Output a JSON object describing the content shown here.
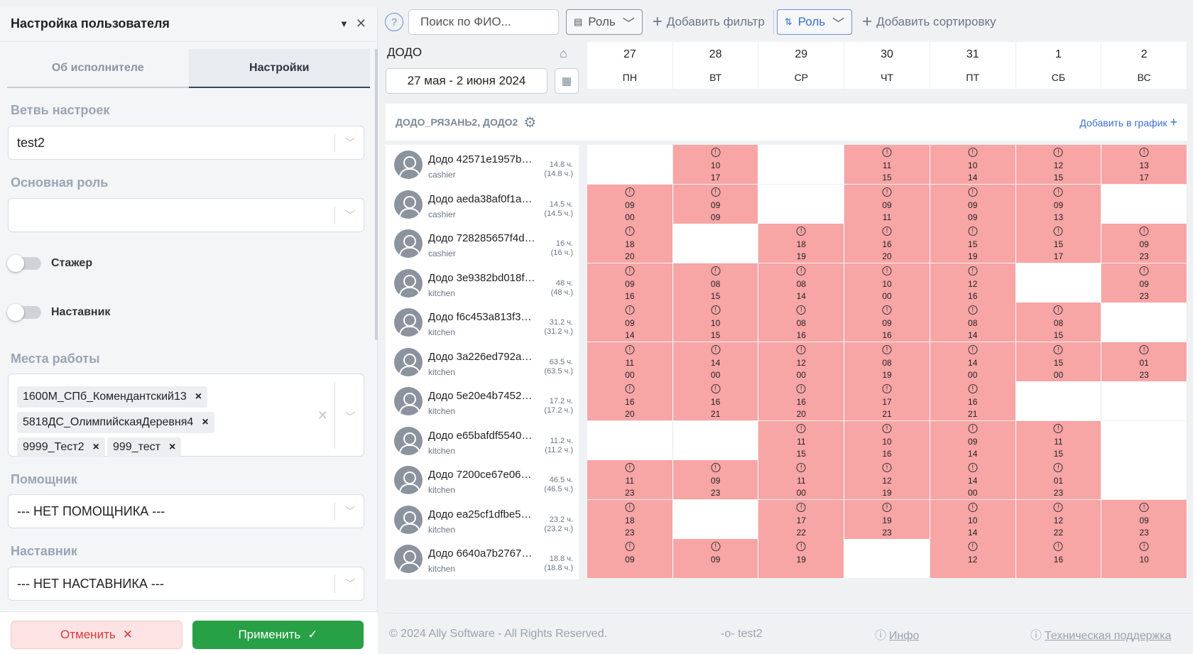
{
  "panel": {
    "title": "Настройка пользователя",
    "tabs": [
      "Об исполнителе",
      "Настройки"
    ],
    "branch_label": "Ветвь настроек",
    "branch_value": "test2",
    "role_label": "Основная роль",
    "role_value": "",
    "trainee_label": "Стажер",
    "mentor_toggle_label": "Наставник",
    "workplaces_label": "Места работы",
    "workplaces": [
      "1600М_СПб_Комендантский13",
      "5818ДС_ОлимпийскаяДеревня4",
      "9999_Тест2",
      "999_тест"
    ],
    "assistant_label": "Помощник",
    "assistant_value": "--- НЕТ ПОМОЩНИКА ---",
    "mentor_label": "Наставник",
    "mentor_value": "--- НЕТ НАСТАВНИКА ---",
    "cancel_label": "Отменить",
    "apply_label": "Применить"
  },
  "toolbar": {
    "help": "?",
    "search_placeholder": "Поиск по ФИО...",
    "role_filter": "Роль",
    "add_filter": "Добавить фильтр",
    "role_sort": "Роль",
    "add_sort": "Добавить сортировку"
  },
  "schedule": {
    "org": "ДОДО",
    "date_range": "27 мая - 2 июня 2024",
    "days": [
      {
        "num": "27",
        "wd": "ПН"
      },
      {
        "num": "28",
        "wd": "ВТ"
      },
      {
        "num": "29",
        "wd": "СР"
      },
      {
        "num": "30",
        "wd": "ЧТ"
      },
      {
        "num": "31",
        "wd": "ПТ"
      },
      {
        "num": "1",
        "wd": "СБ"
      },
      {
        "num": "2",
        "wd": "ВС"
      }
    ],
    "group_title": "ДОДО_РЯЗАНЬ2, ДОДО2",
    "add_to_graph": "Добавить в график",
    "employees": [
      {
        "name": "Додо 42571e1957b…",
        "role": "cashier",
        "hours": "14.8 ч.",
        "hours_total": "(14.8 ч.)",
        "shifts": [
          null,
          [
            "10",
            "17"
          ],
          null,
          [
            "11",
            "15"
          ],
          [
            "10",
            "14"
          ],
          [
            "12",
            "15"
          ],
          [
            "13",
            "17"
          ]
        ]
      },
      {
        "name": "Додо aeda38af0f1a…",
        "role": "cashier",
        "hours": "14.5 ч.",
        "hours_total": "(14.5 ч.)",
        "shifts": [
          [
            "09",
            "00"
          ],
          [
            "09",
            "09"
          ],
          null,
          [
            "09",
            "11"
          ],
          [
            "09",
            "09"
          ],
          [
            "09",
            "13"
          ],
          null
        ]
      },
      {
        "name": "Додо 728285657f4d…",
        "role": "cashier",
        "hours": "16 ч.",
        "hours_total": "(16 ч.)",
        "shifts": [
          [
            "18",
            "20"
          ],
          null,
          [
            "18",
            "19"
          ],
          [
            "16",
            "20"
          ],
          [
            "15",
            "19"
          ],
          [
            "15",
            "17"
          ],
          [
            "09",
            "23"
          ]
        ]
      },
      {
        "name": "Додо 3e9382bd018f…",
        "role": "kitchen",
        "hours": "48 ч.",
        "hours_total": "(48 ч.)",
        "shifts": [
          [
            "09",
            "16"
          ],
          [
            "08",
            "15"
          ],
          [
            "08",
            "14"
          ],
          [
            "10",
            "00"
          ],
          [
            "12",
            "16"
          ],
          null,
          [
            "09",
            "23"
          ]
        ]
      },
      {
        "name": "Додо f6c453a813f3…",
        "role": "kitchen",
        "hours": "31.2 ч.",
        "hours_total": "(31.2 ч.)",
        "shifts": [
          [
            "09",
            "14"
          ],
          [
            "10",
            "15"
          ],
          [
            "08",
            "16"
          ],
          [
            "09",
            "16"
          ],
          [
            "08",
            "14"
          ],
          [
            "08",
            "15"
          ],
          null
        ]
      },
      {
        "name": "Додо 3a226ed792a…",
        "role": "kitchen",
        "hours": "63.5 ч.",
        "hours_total": "(63.5 ч.)",
        "shifts": [
          [
            "11",
            "00"
          ],
          [
            "14",
            "00"
          ],
          [
            "12",
            "00"
          ],
          [
            "08",
            "19"
          ],
          [
            "14",
            "00"
          ],
          [
            "15",
            "00"
          ],
          [
            "01",
            "23"
          ]
        ]
      },
      {
        "name": "Додо 5e20e4b7452…",
        "role": "kitchen",
        "hours": "17.2 ч.",
        "hours_total": "(17.2 ч.)",
        "shifts": [
          [
            "16",
            "20"
          ],
          [
            "16",
            "21"
          ],
          [
            "16",
            "20"
          ],
          [
            "17",
            "21"
          ],
          [
            "16",
            "21"
          ],
          null,
          null
        ]
      },
      {
        "name": "Додо e65bafdf5540…",
        "role": "kitchen",
        "hours": "11.2 ч.",
        "hours_total": "(11.2 ч.)",
        "shifts": [
          null,
          null,
          [
            "11",
            "15"
          ],
          [
            "10",
            "16"
          ],
          [
            "09",
            "14"
          ],
          [
            "11",
            "15"
          ],
          null
        ]
      },
      {
        "name": "Додо 7200ce67e06…",
        "role": "kitchen",
        "hours": "46.5 ч.",
        "hours_total": "(46.5 ч.)",
        "shifts": [
          [
            "11",
            "23"
          ],
          [
            "09",
            "23"
          ],
          [
            "11",
            "00"
          ],
          [
            "12",
            "19"
          ],
          [
            "14",
            "00"
          ],
          [
            "01",
            "23"
          ],
          null
        ]
      },
      {
        "name": "Додо ea25cf1dfbe5…",
        "role": "kitchen",
        "hours": "23.2 ч.",
        "hours_total": "(23.2 ч.)",
        "shifts": [
          [
            "18",
            "23"
          ],
          null,
          [
            "17",
            "22"
          ],
          [
            "19",
            "23"
          ],
          [
            "10",
            "14"
          ],
          [
            "12",
            "22"
          ],
          [
            "09",
            "23"
          ]
        ]
      },
      {
        "name": "Додо 6640a7b2767…",
        "role": "kitchen",
        "hours": "18.8 ч.",
        "hours_total": "(18.8 ч.)",
        "shifts": [
          [
            "09",
            ""
          ],
          [
            "09",
            ""
          ],
          [
            "19",
            ""
          ],
          null,
          [
            "12",
            ""
          ],
          [
            "16",
            ""
          ],
          [
            "10",
            ""
          ]
        ]
      }
    ]
  },
  "footer": {
    "copyright": "© 2024 Ally Software - All Rights Reserved.",
    "branch": "-o- test2",
    "info": "Инфо",
    "support": "Техническая поддержка"
  },
  "colors": {
    "shift_red": "#f8a5a5",
    "apply_green": "#27a046",
    "cancel_bg": "#fde3e3",
    "accent_blue": "#3b6fd1"
  }
}
